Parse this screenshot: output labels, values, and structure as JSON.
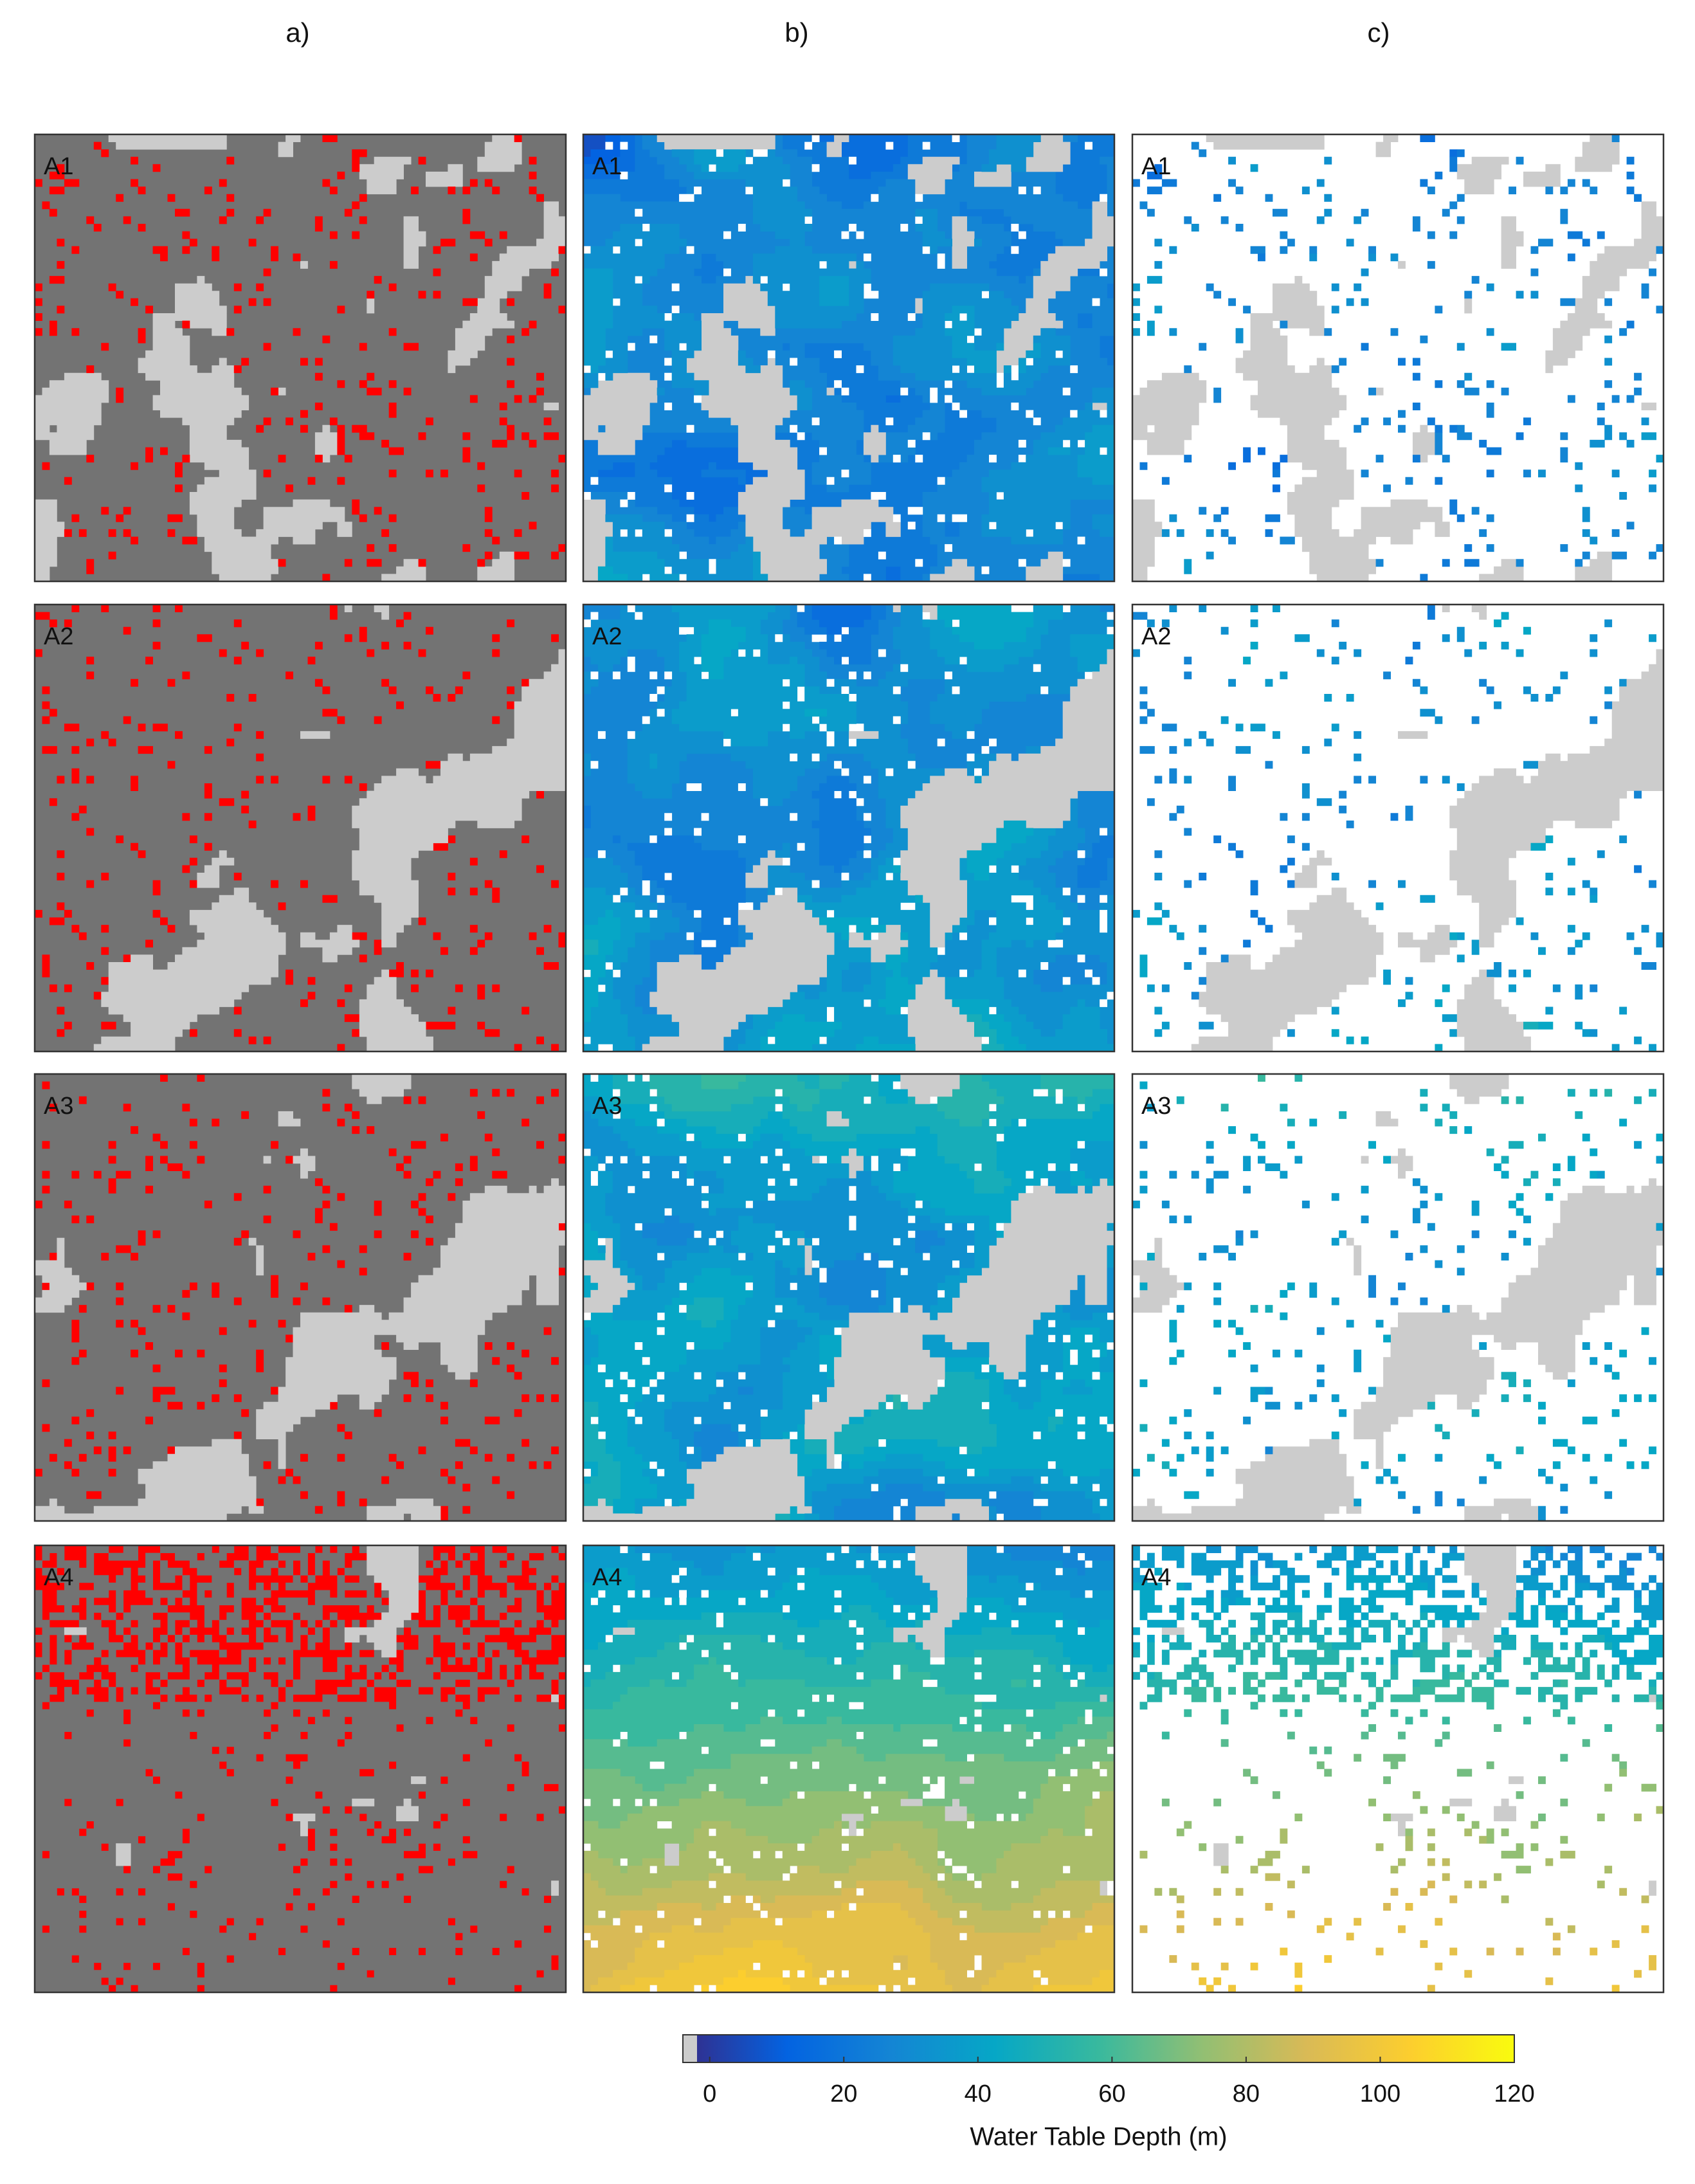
{
  "chart_data": {
    "type": "colorbar",
    "column_labels": [
      "a)",
      "b)",
      "c)"
    ],
    "panel_labels": [
      "A1",
      "A2",
      "A3",
      "A4"
    ],
    "label": "Water Table Depth (m)",
    "xlim": [
      -4,
      120
    ],
    "xticks": [
      0,
      20,
      40,
      60,
      80,
      100,
      120
    ],
    "colormap": [
      "#352a87",
      "#0363e1",
      "#1485d4",
      "#06a7c6",
      "#38b99e",
      "#92bf73",
      "#d9ba56",
      "#fcce2e",
      "#f9fb0e"
    ],
    "nodata_color": "#cccccc",
    "mask_color": "#737373",
    "highlight_color": "#ff0000"
  }
}
